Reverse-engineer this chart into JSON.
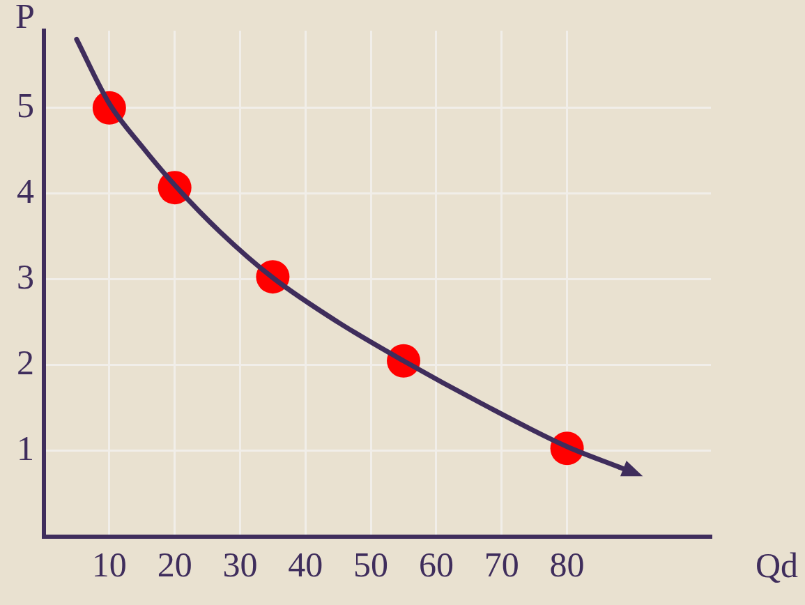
{
  "chart_data": {
    "type": "scatter",
    "xlabel": "Qd",
    "ylabel": "P",
    "xlim": [
      0,
      102
    ],
    "ylim": [
      0,
      5.9
    ],
    "xticks": [
      10,
      20,
      30,
      40,
      50,
      60,
      70,
      80
    ],
    "yticks": [
      1,
      2,
      3,
      4,
      5
    ],
    "grid": true,
    "legend": false,
    "marker": "circle",
    "series": [
      {
        "type": "line",
        "color": "#3f2d5c",
        "marker": "none",
        "x": [
          5,
          10,
          15,
          20,
          27,
          35,
          45,
          55,
          67,
          80,
          88
        ],
        "values": [
          5.8,
          5.05,
          4.55,
          4.1,
          3.55,
          3.02,
          2.5,
          2.05,
          1.55,
          1.05,
          0.81
        ]
      },
      {
        "type": "scatter",
        "color": "#ff0000",
        "x": [
          10,
          20,
          35,
          55,
          80
        ],
        "values": [
          5,
          4.07,
          3.03,
          2.05,
          1.03
        ]
      }
    ]
  }
}
